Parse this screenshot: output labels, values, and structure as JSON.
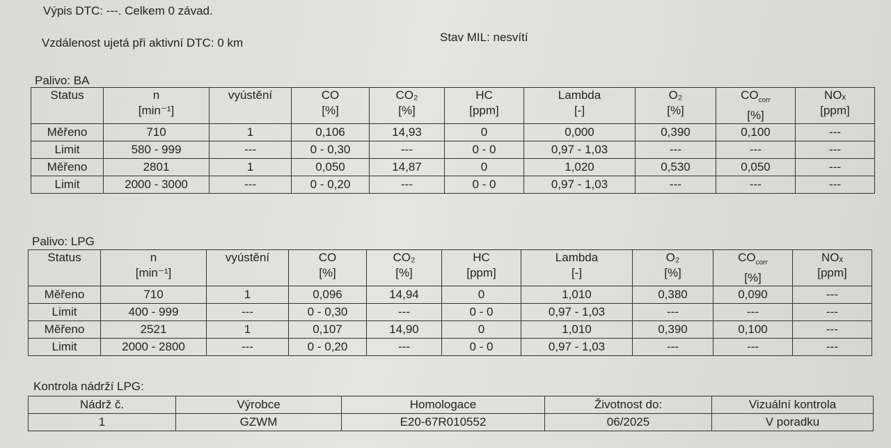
{
  "header": {
    "dtc": "Výpis DTC: ---. Celkem 0 závad.",
    "distance": "Vzdálenost ujetá při aktivní DTC: 0 km",
    "mil": "Stav MIL: nesvítí"
  },
  "sections": [
    {
      "label": "Palivo: BA",
      "columns": [
        {
          "name": "Status"
        },
        {
          "name": "n",
          "unit": "[min⁻¹]"
        },
        {
          "name": "vyústění"
        },
        {
          "name": "CO",
          "unit": "[%]"
        },
        {
          "name": "CO₂",
          "unit": "[%]"
        },
        {
          "name": "HC",
          "unit": "[ppm]"
        },
        {
          "name": "Lambda",
          "unit": "[-]"
        },
        {
          "name": "O₂",
          "unit": "[%]"
        },
        {
          "name": "CO",
          "sub": "corr",
          "unit": "[%]"
        },
        {
          "name": "NOₓ",
          "unit": "[ppm]"
        }
      ],
      "rows": [
        [
          "Měřeno",
          "710",
          "1",
          "0,106",
          "14,93",
          "0",
          "0,000",
          "0,390",
          "0,100",
          "---"
        ],
        [
          "Limit",
          "580 - 999",
          "---",
          "0 - 0,30",
          "---",
          "0 - 0",
          "0,97 - 1,03",
          "---",
          "---",
          "---"
        ],
        [
          "Měřeno",
          "2801",
          "1",
          "0,050",
          "14,87",
          "0",
          "1,020",
          "0,530",
          "0,050",
          "---"
        ],
        [
          "Limit",
          "2000 - 3000",
          "---",
          "0 - 0,20",
          "---",
          "0 - 0",
          "0,97 - 1,03",
          "---",
          "---",
          "---"
        ]
      ]
    },
    {
      "label": "Palivo: LPG",
      "columns": [
        {
          "name": "Status"
        },
        {
          "name": "n",
          "unit": "[min⁻¹]"
        },
        {
          "name": "vyústění"
        },
        {
          "name": "CO",
          "unit": "[%]"
        },
        {
          "name": "CO₂",
          "unit": "[%]"
        },
        {
          "name": "HC",
          "unit": "[ppm]"
        },
        {
          "name": "Lambda",
          "unit": "[-]"
        },
        {
          "name": "O₂",
          "unit": "[%]"
        },
        {
          "name": "CO",
          "sub": "corr",
          "unit": "[%]"
        },
        {
          "name": "NOₓ",
          "unit": "[ppm]"
        }
      ],
      "rows": [
        [
          "Měřeno",
          "710",
          "1",
          "0,096",
          "14,94",
          "0",
          "1,010",
          "0,380",
          "0,090",
          "---"
        ],
        [
          "Limit",
          "400 - 999",
          "---",
          "0 - 0,30",
          "---",
          "0 - 0",
          "0,97 - 1,03",
          "---",
          "---",
          "---"
        ],
        [
          "Měřeno",
          "2521",
          "1",
          "0,107",
          "14,90",
          "0",
          "1,010",
          "0,390",
          "0,100",
          "---"
        ],
        [
          "Limit",
          "2000 - 2800",
          "---",
          "0 - 0,20",
          "---",
          "0 - 0",
          "0,97 - 1,03",
          "---",
          "---",
          "---"
        ]
      ]
    }
  ],
  "tanks": {
    "label": "Kontrola nádrží LPG:",
    "columns": [
      "Nádrž č.",
      "Výrobce",
      "Homologace",
      "Životnost do:",
      "Vizuální kontrola"
    ],
    "rows": [
      [
        "1",
        "GZWM",
        "E20-67R010552",
        "06/2025",
        "V poradku"
      ]
    ]
  }
}
